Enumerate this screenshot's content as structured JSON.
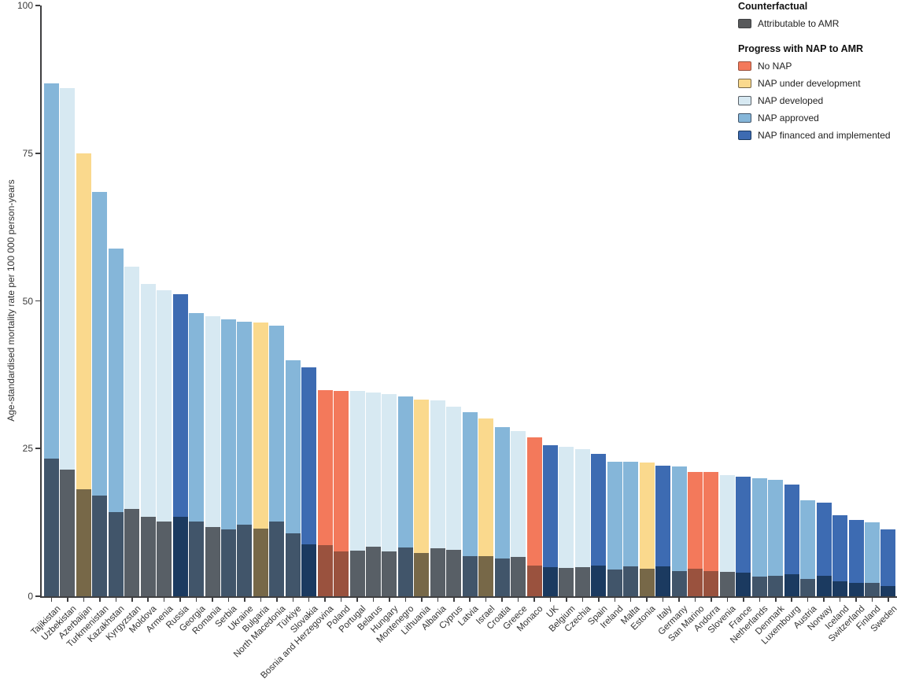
{
  "legend": {
    "counterfactual_title": "Counterfactual",
    "attributable_label": "Attributable to AMR",
    "nap_title": "Progress with NAP to AMR"
  },
  "chart_data": {
    "type": "bar",
    "title": "",
    "xlabel": "",
    "ylabel": "Age-standardised mortality rate per 100 000 person-years",
    "ylim": [
      0,
      100
    ],
    "yticks": [
      0,
      25,
      50,
      75,
      100
    ],
    "grid": false,
    "legend_position": "top-right",
    "bar_structure": "each bar = total counterfactual height colored by NAP status, with darker overlay segment at base = portion attributable to AMR",
    "attributable": {
      "label": "Attributable to AMR",
      "color": "#58595B"
    },
    "categories_legend": [
      {
        "key": "no_nap",
        "label": "No NAP",
        "color": "#F3795B",
        "attributable_color": "#9A523E"
      },
      {
        "key": "under_development",
        "label": "NAP under development",
        "color": "#FAD98D",
        "attributable_color": "#776848"
      },
      {
        "key": "developed",
        "label": "NAP developed",
        "color": "#D7E9F2",
        "attributable_color": "#585F66"
      },
      {
        "key": "approved",
        "label": "NAP approved",
        "color": "#85B6D9",
        "attributable_color": "#41556A"
      },
      {
        "key": "financed",
        "label": "NAP financed and implemented",
        "color": "#3D6BB2",
        "attributable_color": "#1B3A60"
      }
    ],
    "countries": [
      {
        "name": "Tajikistan",
        "nap": "approved",
        "total": 86.8,
        "attributable": 23.3
      },
      {
        "name": "Uzbekistan",
        "nap": "developed",
        "total": 86.0,
        "attributable": 21.4
      },
      {
        "name": "Azerbaijan",
        "nap": "under_development",
        "total": 75.0,
        "attributable": 18.1
      },
      {
        "name": "Turkmenistan",
        "nap": "approved",
        "total": 68.4,
        "attributable": 17.0
      },
      {
        "name": "Kazakhstan",
        "nap": "approved",
        "total": 58.9,
        "attributable": 14.2
      },
      {
        "name": "Kyrgyzstan",
        "nap": "developed",
        "total": 55.8,
        "attributable": 14.8
      },
      {
        "name": "Moldova",
        "nap": "developed",
        "total": 52.9,
        "attributable": 13.4
      },
      {
        "name": "Armenia",
        "nap": "developed",
        "total": 51.8,
        "attributable": 12.6
      },
      {
        "name": "Russia",
        "nap": "financed",
        "total": 51.1,
        "attributable": 13.4
      },
      {
        "name": "Georgia",
        "nap": "approved",
        "total": 48.0,
        "attributable": 12.6
      },
      {
        "name": "Romania",
        "nap": "developed",
        "total": 47.4,
        "attributable": 11.7
      },
      {
        "name": "Serbia",
        "nap": "approved",
        "total": 46.9,
        "attributable": 11.3
      },
      {
        "name": "Ukraine",
        "nap": "approved",
        "total": 46.5,
        "attributable": 12.1
      },
      {
        "name": "Bulgaria",
        "nap": "under_development",
        "total": 46.3,
        "attributable": 11.5
      },
      {
        "name": "North Macedonia",
        "nap": "approved",
        "total": 45.8,
        "attributable": 12.6
      },
      {
        "name": "Türkiye",
        "nap": "approved",
        "total": 39.9,
        "attributable": 10.7
      },
      {
        "name": "Slovakia",
        "nap": "financed",
        "total": 38.7,
        "attributable": 8.8
      },
      {
        "name": "Bosnia and Herzegovina",
        "nap": "no_nap",
        "total": 34.9,
        "attributable": 8.7
      },
      {
        "name": "Poland",
        "nap": "no_nap",
        "total": 34.8,
        "attributable": 7.6
      },
      {
        "name": "Portugal",
        "nap": "developed",
        "total": 34.8,
        "attributable": 7.7
      },
      {
        "name": "Belarus",
        "nap": "developed",
        "total": 34.5,
        "attributable": 8.4
      },
      {
        "name": "Hungary",
        "nap": "developed",
        "total": 34.2,
        "attributable": 7.6
      },
      {
        "name": "Montenegro",
        "nap": "approved",
        "total": 33.8,
        "attributable": 8.3
      },
      {
        "name": "Lithuania",
        "nap": "under_development",
        "total": 33.3,
        "attributable": 7.3
      },
      {
        "name": "Albania",
        "nap": "developed",
        "total": 33.2,
        "attributable": 8.1
      },
      {
        "name": "Cyprus",
        "nap": "developed",
        "total": 32.1,
        "attributable": 7.9
      },
      {
        "name": "Latvia",
        "nap": "approved",
        "total": 31.2,
        "attributable": 6.8
      },
      {
        "name": "Israel",
        "nap": "under_development",
        "total": 30.1,
        "attributable": 6.8
      },
      {
        "name": "Croatia",
        "nap": "approved",
        "total": 28.6,
        "attributable": 6.4
      },
      {
        "name": "Greece",
        "nap": "developed",
        "total": 28.0,
        "attributable": 6.7
      },
      {
        "name": "Monaco",
        "nap": "no_nap",
        "total": 26.9,
        "attributable": 5.2
      },
      {
        "name": "UK",
        "nap": "financed",
        "total": 25.6,
        "attributable": 4.9
      },
      {
        "name": "Belgium",
        "nap": "developed",
        "total": 25.3,
        "attributable": 4.8
      },
      {
        "name": "Czechia",
        "nap": "developed",
        "total": 24.9,
        "attributable": 4.9
      },
      {
        "name": "Spain",
        "nap": "financed",
        "total": 24.1,
        "attributable": 5.2
      },
      {
        "name": "Ireland",
        "nap": "approved",
        "total": 22.8,
        "attributable": 4.5
      },
      {
        "name": "Malta",
        "nap": "approved",
        "total": 22.8,
        "attributable": 5.1
      },
      {
        "name": "Estonia",
        "nap": "under_development",
        "total": 22.6,
        "attributable": 4.7
      },
      {
        "name": "Italy",
        "nap": "financed",
        "total": 22.1,
        "attributable": 5.1
      },
      {
        "name": "Germany",
        "nap": "approved",
        "total": 22.0,
        "attributable": 4.2
      },
      {
        "name": "San Marino",
        "nap": "no_nap",
        "total": 21.0,
        "attributable": 4.7
      },
      {
        "name": "Andorra",
        "nap": "no_nap",
        "total": 21.0,
        "attributable": 4.3
      },
      {
        "name": "Slovenia",
        "nap": "developed",
        "total": 20.5,
        "attributable": 4.1
      },
      {
        "name": "France",
        "nap": "financed",
        "total": 20.2,
        "attributable": 4.0
      },
      {
        "name": "Netherlands",
        "nap": "approved",
        "total": 20.0,
        "attributable": 3.3
      },
      {
        "name": "Denmark",
        "nap": "approved",
        "total": 19.7,
        "attributable": 3.5
      },
      {
        "name": "Luxembourg",
        "nap": "financed",
        "total": 18.9,
        "attributable": 3.7
      },
      {
        "name": "Austria",
        "nap": "approved",
        "total": 16.2,
        "attributable": 2.9
      },
      {
        "name": "Norway",
        "nap": "financed",
        "total": 15.8,
        "attributable": 3.5
      },
      {
        "name": "Iceland",
        "nap": "financed",
        "total": 13.7,
        "attributable": 2.5
      },
      {
        "name": "Switzerland",
        "nap": "financed",
        "total": 12.9,
        "attributable": 2.2
      },
      {
        "name": "Finland",
        "nap": "approved",
        "total": 12.5,
        "attributable": 2.2
      },
      {
        "name": "Sweden",
        "nap": "financed",
        "total": 11.3,
        "attributable": 1.7
      }
    ]
  }
}
